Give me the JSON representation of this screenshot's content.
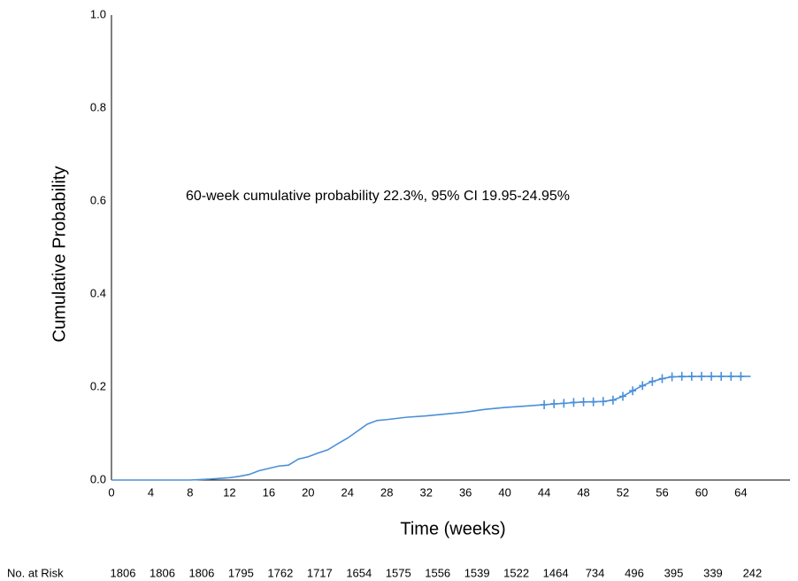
{
  "chart_data": {
    "type": "line",
    "ylabel": "Cumulative Probability",
    "xlabel": "Time (weeks)",
    "annotation": "60-week cumulative probability 22.3%, 95% CI 19.95-24.95%",
    "xlim": [
      0,
      69
    ],
    "xticks": [
      0,
      4,
      8,
      12,
      16,
      20,
      24,
      28,
      32,
      36,
      40,
      44,
      48,
      52,
      56,
      60,
      64
    ],
    "ylim": [
      0,
      1
    ],
    "yticks": [
      {
        "value": 0,
        "label": "0.0"
      },
      0.2,
      0.4,
      0.6,
      0.8,
      {
        "value": 1,
        "label": "1.0"
      }
    ],
    "grid": false,
    "series": [
      {
        "color": "#4a90d9",
        "x": [
          0,
          8,
          10,
          12,
          13,
          14,
          15,
          16,
          17,
          18,
          19,
          20,
          21,
          22,
          23,
          24,
          25,
          26,
          27,
          28,
          30,
          32,
          34,
          36,
          38,
          40,
          42,
          44,
          46,
          48,
          50,
          51,
          52,
          53,
          54,
          55,
          56,
          57,
          60,
          65
        ],
        "values": [
          0,
          0,
          0.002,
          0.005,
          0.008,
          0.012,
          0.02,
          0.025,
          0.03,
          0.032,
          0.045,
          0.05,
          0.058,
          0.065,
          0.078,
          0.09,
          0.105,
          0.12,
          0.128,
          0.13,
          0.135,
          0.138,
          0.142,
          0.146,
          0.152,
          0.156,
          0.159,
          0.162,
          0.165,
          0.168,
          0.169,
          0.172,
          0.18,
          0.192,
          0.203,
          0.212,
          0.218,
          0.222,
          0.223,
          0.223
        ],
        "censored": {
          "x": [
            44,
            45,
            46,
            47,
            48,
            49,
            50,
            51,
            52,
            53,
            54,
            55,
            56,
            57,
            58,
            59,
            60,
            61,
            62,
            63,
            64
          ],
          "values": [
            0.162,
            0.164,
            0.165,
            0.167,
            0.168,
            0.168,
            0.169,
            0.172,
            0.18,
            0.192,
            0.203,
            0.212,
            0.218,
            0.222,
            0.223,
            0.223,
            0.223,
            0.223,
            0.223,
            0.223,
            0.223
          ]
        }
      }
    ],
    "risk_table": {
      "label": "No. at Risk",
      "values": [
        1806,
        1806,
        1806,
        1795,
        1762,
        1717,
        1654,
        1575,
        1556,
        1539,
        1522,
        1464,
        734,
        496,
        395,
        339,
        242
      ]
    }
  }
}
